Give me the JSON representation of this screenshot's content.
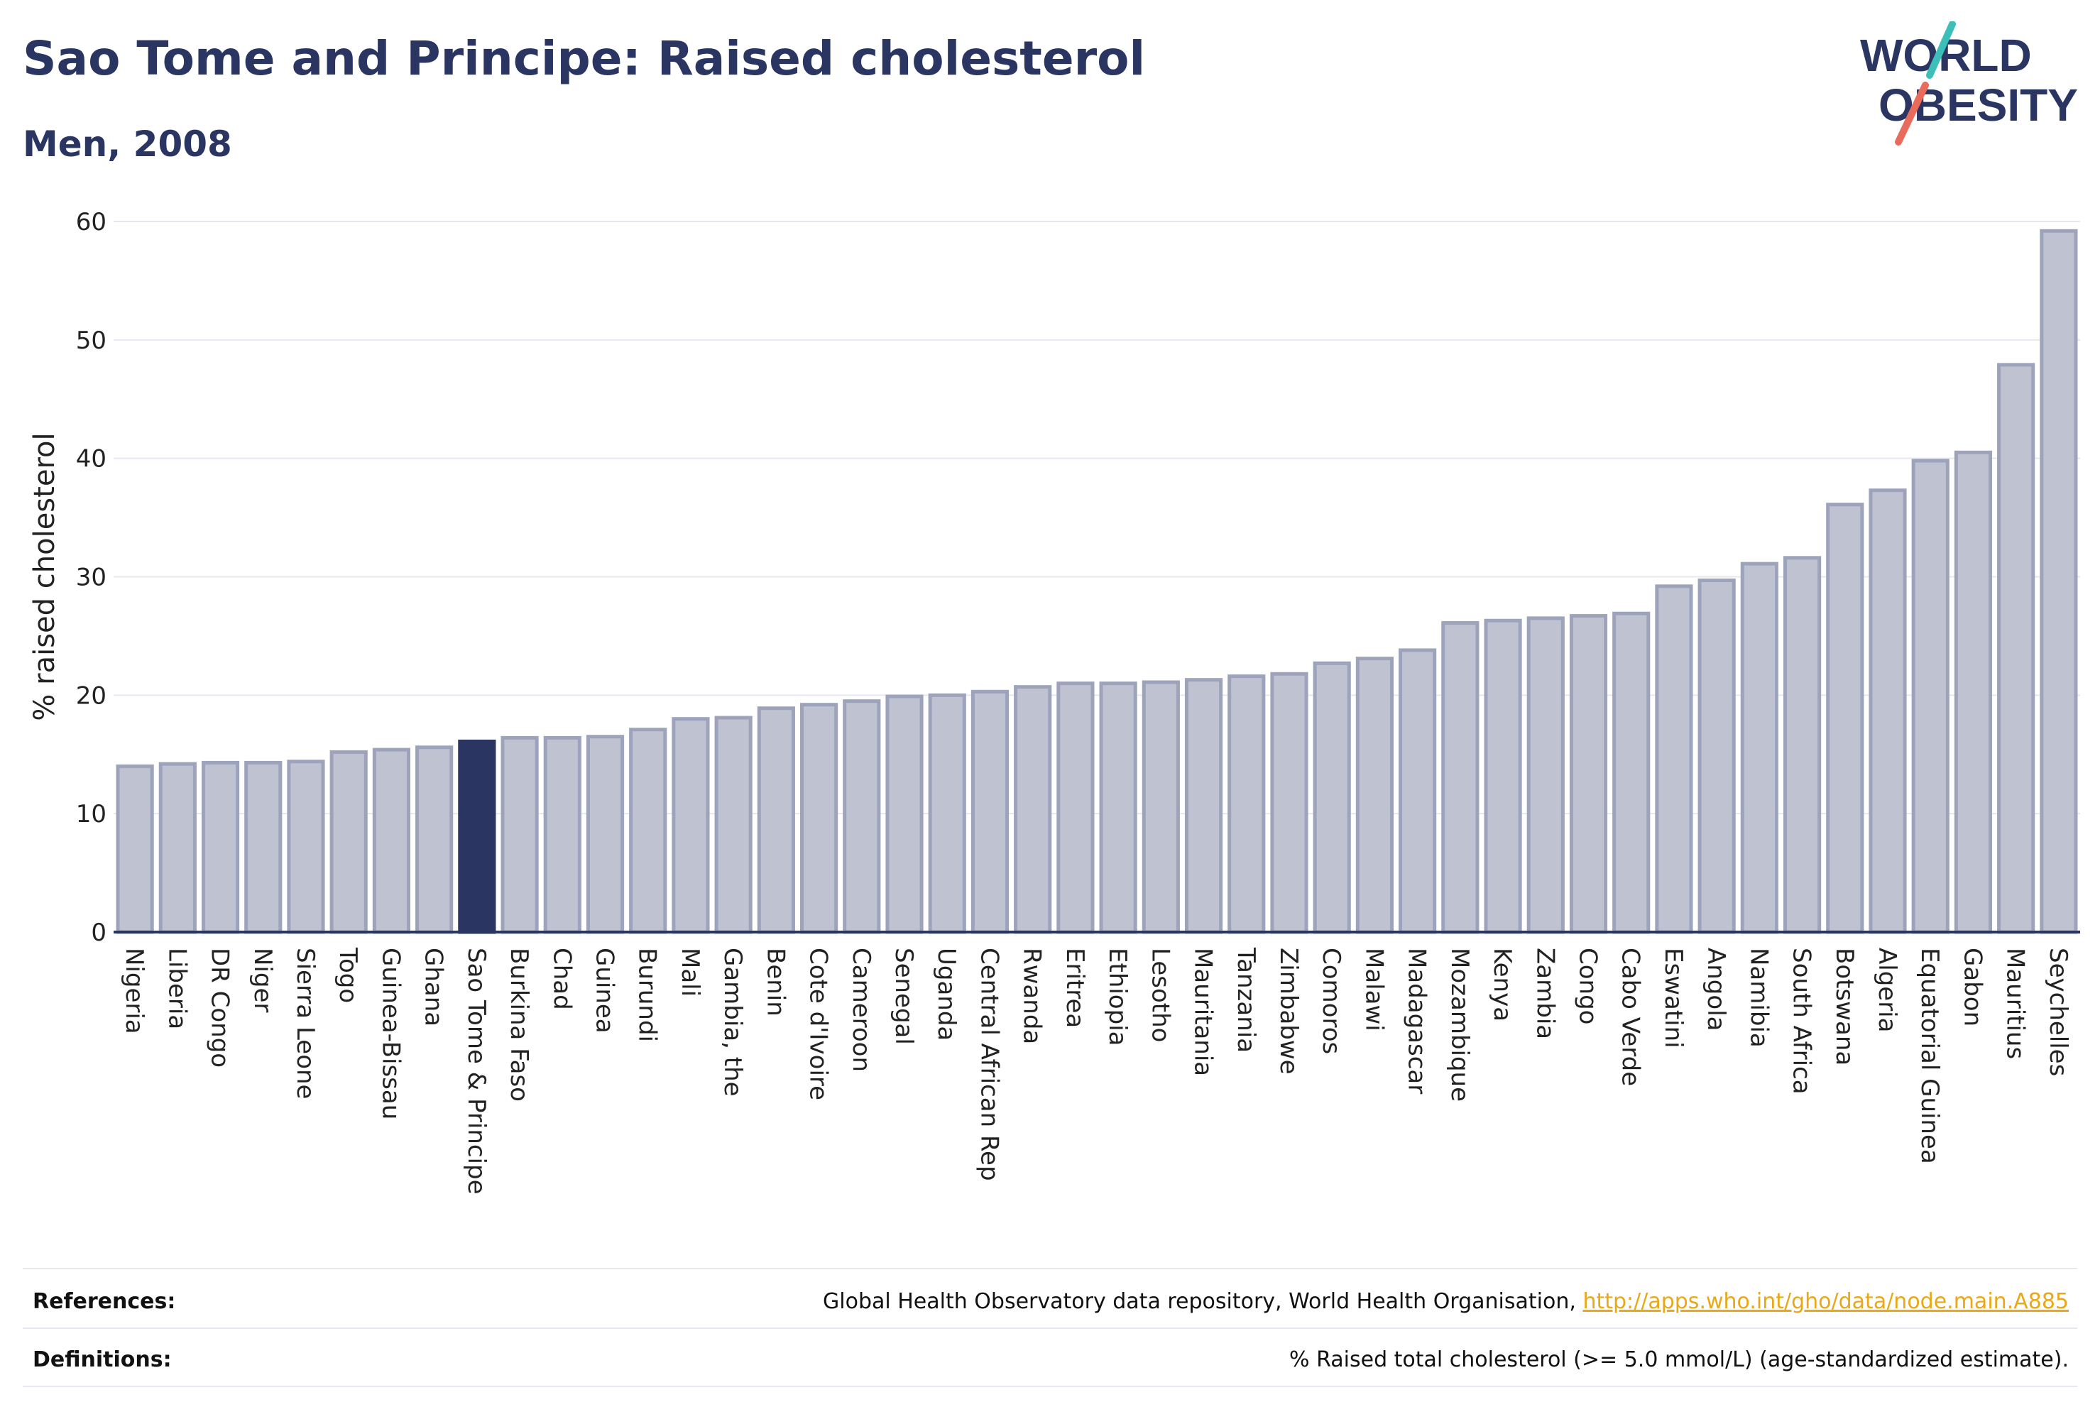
{
  "header": {
    "title": "Sao Tome and Principe: Raised cholesterol",
    "subtitle": "Men, 2008"
  },
  "logo": {
    "line1": "WORLD",
    "line2": "OBESITY",
    "accent_teal": "#3bbfb8",
    "accent_red": "#e86b5c"
  },
  "chart_data": {
    "type": "bar",
    "ylabel": "% raised cholesterol",
    "xlabel": "",
    "ylim": [
      0,
      60
    ],
    "yticks": [
      0,
      10,
      20,
      30,
      40,
      50,
      60
    ],
    "grid": true,
    "highlight": "Sao Tome & Principe",
    "colors": {
      "bar": "#bfc3d1",
      "bar_edge": "#9da3bb",
      "highlight": "#2a3561",
      "grid": "#e6e8f0",
      "axis": "#2a3561"
    },
    "categories": [
      "Nigeria",
      "Liberia",
      "DR Congo",
      "Niger",
      "Sierra Leone",
      "Togo",
      "Guinea-Bissau",
      "Ghana",
      "Sao Tome & Principe",
      "Burkina Faso",
      "Chad",
      "Guinea",
      "Burundi",
      "Mali",
      "Gambia, the",
      "Benin",
      "Cote d'Ivoire",
      "Cameroon",
      "Senegal",
      "Uganda",
      "Central African Rep",
      "Rwanda",
      "Eritrea",
      "Ethiopia",
      "Lesotho",
      "Mauritania",
      "Tanzania",
      "Zimbabwe",
      "Comoros",
      "Malawi",
      "Madagascar",
      "Mozambique",
      "Kenya",
      "Zambia",
      "Congo",
      "Cabo Verde",
      "Eswatini",
      "Angola",
      "Namibia",
      "South Africa",
      "Botswana",
      "Algeria",
      "Equatorial Guinea",
      "Gabon",
      "Mauritius",
      "Seychelles"
    ],
    "values": [
      14.0,
      14.2,
      14.3,
      14.3,
      14.4,
      15.2,
      15.4,
      15.6,
      16.1,
      16.4,
      16.4,
      16.5,
      17.1,
      18.0,
      18.1,
      18.9,
      19.2,
      19.5,
      19.9,
      20.0,
      20.3,
      20.7,
      21.0,
      21.0,
      21.1,
      21.3,
      21.6,
      21.8,
      22.7,
      23.1,
      23.8,
      26.1,
      26.3,
      26.5,
      26.7,
      26.9,
      29.2,
      29.7,
      31.1,
      31.6,
      36.1,
      37.3,
      39.8,
      40.5,
      47.9,
      59.2
    ]
  },
  "footer": {
    "references_label": "References:",
    "references_text": "Global Health Observatory data repository, World Health Organisation, ",
    "references_link": "http://apps.who.int/gho/data/node.main.A885",
    "definitions_label": "Definitions:",
    "definitions_text": "% Raised total cholesterol (>= 5.0 mmol/L) (age-standardized estimate)."
  }
}
